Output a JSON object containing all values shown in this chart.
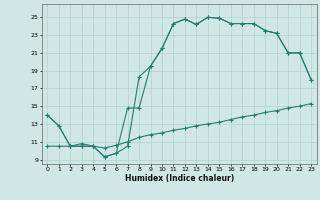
{
  "xlabel": "Humidex (Indice chaleur)",
  "xlim": [
    -0.5,
    23.5
  ],
  "ylim": [
    8.5,
    26.5
  ],
  "yticks": [
    9,
    11,
    13,
    15,
    17,
    19,
    21,
    23,
    25
  ],
  "xticks": [
    0,
    1,
    2,
    3,
    4,
    5,
    6,
    7,
    8,
    9,
    10,
    11,
    12,
    13,
    14,
    15,
    16,
    17,
    18,
    19,
    20,
    21,
    22,
    23
  ],
  "bg_color": "#cfe8e5",
  "line_color": "#2a7b6f",
  "curve1_x": [
    0,
    1,
    2,
    3,
    4,
    5,
    6,
    7,
    8,
    9,
    10,
    11,
    12,
    13,
    14,
    15,
    16,
    17,
    18,
    19,
    20,
    21,
    22,
    23
  ],
  "curve1_y": [
    14.0,
    12.8,
    10.5,
    10.5,
    10.5,
    9.3,
    9.7,
    10.5,
    18.3,
    19.5,
    21.5,
    24.3,
    24.8,
    24.2,
    25.0,
    24.9,
    24.3,
    24.3,
    24.3,
    23.5,
    23.2,
    21.0,
    21.0,
    18.0
  ],
  "curve2_x": [
    0,
    1,
    2,
    3,
    4,
    5,
    6,
    7,
    8,
    9,
    10,
    11,
    12,
    13,
    14,
    15,
    16,
    17,
    18,
    19,
    20,
    21,
    22,
    23
  ],
  "curve2_y": [
    14.0,
    12.8,
    10.5,
    10.5,
    10.5,
    9.3,
    9.7,
    14.8,
    14.8,
    19.5,
    21.5,
    24.3,
    24.8,
    24.2,
    25.0,
    24.9,
    24.3,
    24.3,
    24.3,
    23.5,
    23.2,
    21.0,
    21.0,
    18.0
  ],
  "curve3_x": [
    0,
    1,
    2,
    3,
    4,
    5,
    6,
    7,
    8,
    9,
    10,
    11,
    12,
    13,
    14,
    15,
    16,
    17,
    18,
    19,
    20,
    21,
    22,
    23
  ],
  "curve3_y": [
    10.5,
    10.5,
    10.5,
    10.8,
    10.5,
    10.3,
    10.6,
    11.0,
    11.5,
    11.8,
    12.0,
    12.3,
    12.5,
    12.8,
    13.0,
    13.2,
    13.5,
    13.8,
    14.0,
    14.3,
    14.5,
    14.8,
    15.0,
    15.3
  ]
}
